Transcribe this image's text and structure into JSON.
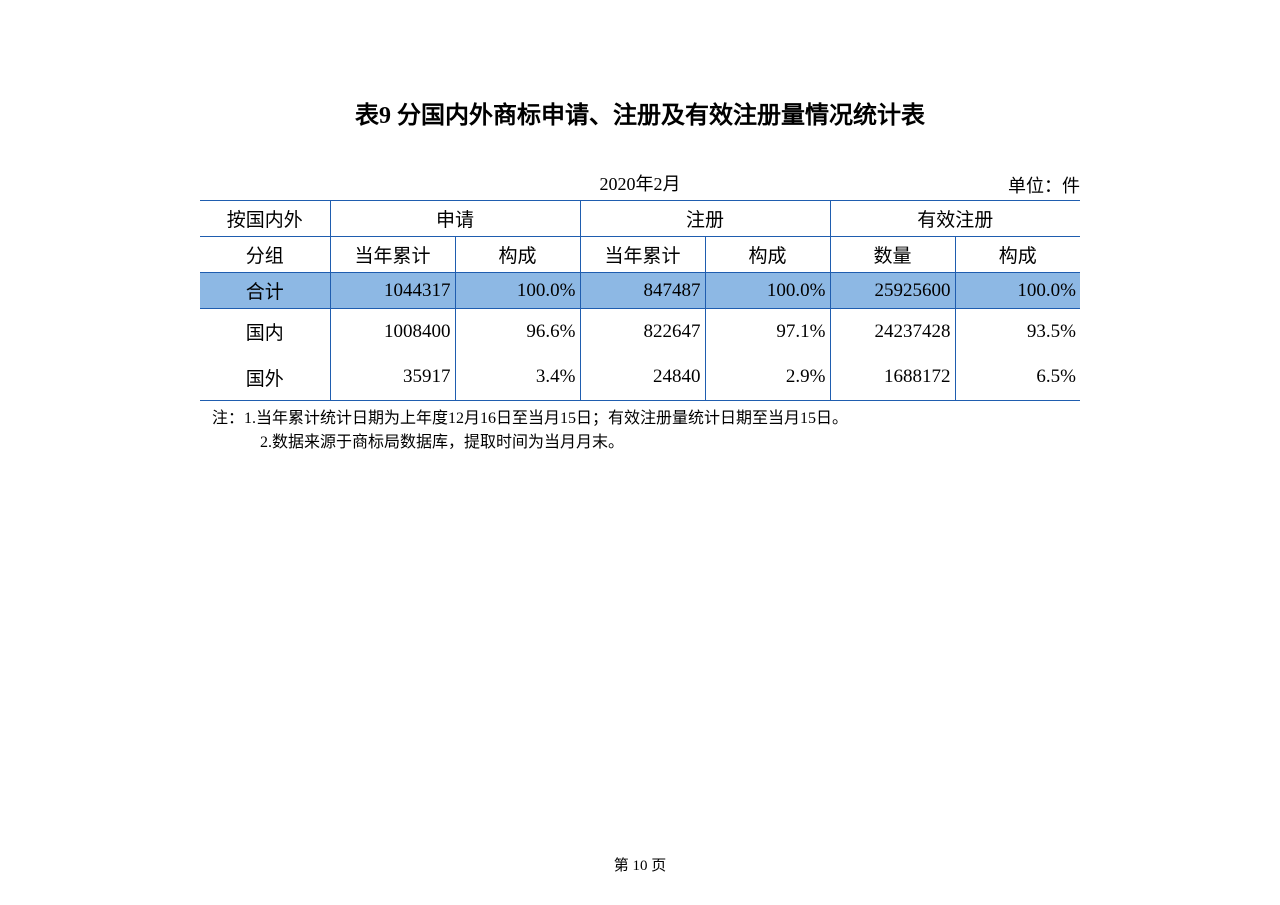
{
  "title": "表9 分国内外商标申请、注册及有效注册量情况统计表",
  "date": "2020年2月",
  "unit": "单位：件",
  "colors": {
    "border": "#1f5daf",
    "highlight_bg": "#8db8e4",
    "background": "#ffffff",
    "text": "#000000"
  },
  "header": {
    "group": "按国内外分组",
    "application": "申请",
    "registration": "注册",
    "valid": "有效注册",
    "ytd": "当年累计",
    "composition": "构成",
    "quantity": "数量"
  },
  "rows": [
    {
      "label": "合计",
      "app_ytd": "1044317",
      "app_pct": "100.0%",
      "reg_ytd": "847487",
      "reg_pct": "100.0%",
      "valid_qty": "25925600",
      "valid_pct": "100.0%",
      "highlight": true
    },
    {
      "label": "国内",
      "app_ytd": "1008400",
      "app_pct": "96.6%",
      "reg_ytd": "822647",
      "reg_pct": "97.1%",
      "valid_qty": "24237428",
      "valid_pct": "93.5%",
      "highlight": false
    },
    {
      "label": "国外",
      "app_ytd": "35917",
      "app_pct": "3.4%",
      "reg_ytd": "24840",
      "reg_pct": "2.9%",
      "valid_qty": "1688172",
      "valid_pct": "6.5%",
      "highlight": false
    }
  ],
  "notes": {
    "line1": "注：1.当年累计统计日期为上年度12月16日至当月15日；有效注册量统计日期至当月15日。",
    "line2": "2.数据来源于商标局数据库，提取时间为当月月末。"
  },
  "page_number": "第 10 页"
}
